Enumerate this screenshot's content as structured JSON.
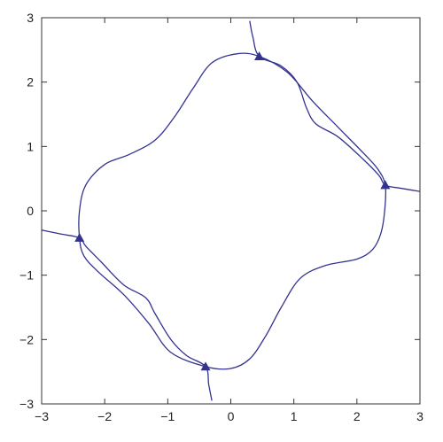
{
  "chart_data": {
    "type": "line",
    "title": "",
    "xlabel": "",
    "ylabel": "",
    "xlim": [
      -3,
      3
    ],
    "ylim": [
      -3,
      3
    ],
    "grid": false,
    "x_ticks": [
      -3,
      -2,
      -1,
      0,
      1,
      2,
      3
    ],
    "y_ticks": [
      -3,
      -2,
      -1,
      0,
      1,
      2,
      3
    ],
    "x_tick_labels": [
      "−3",
      "−2",
      "−1",
      "0",
      "1",
      "2",
      "3"
    ],
    "y_tick_labels": [
      "−3",
      "−2",
      "−1",
      "0",
      "1",
      "2",
      "3"
    ],
    "line_color": "#33338f",
    "series": [
      {
        "values_xy": [
          [
            2.45,
            0.4
          ],
          [
            2.44,
            0.0
          ],
          [
            2.38,
            -0.35
          ],
          [
            2.25,
            -0.6
          ],
          [
            2.0,
            -0.75
          ],
          [
            1.5,
            -0.85
          ],
          [
            1.1,
            -1.05
          ],
          [
            0.8,
            -1.5
          ],
          [
            0.55,
            -1.95
          ],
          [
            0.3,
            -2.3
          ],
          [
            0.0,
            -2.45
          ],
          [
            -0.4,
            -2.42
          ],
          [
            -0.95,
            -2.2
          ],
          [
            -1.3,
            -1.75
          ],
          [
            -1.7,
            -1.3
          ],
          [
            -2.1,
            -0.95
          ],
          [
            -2.33,
            -0.7
          ],
          [
            -2.4,
            -0.42
          ],
          [
            -2.4,
            0.0
          ],
          [
            -2.3,
            0.4
          ],
          [
            -2.0,
            0.72
          ],
          [
            -1.6,
            0.88
          ],
          [
            -1.2,
            1.1
          ],
          [
            -0.9,
            1.45
          ],
          [
            -0.6,
            1.9
          ],
          [
            -0.3,
            2.3
          ],
          [
            0.1,
            2.44
          ],
          [
            0.45,
            2.4
          ],
          [
            0.9,
            2.15
          ],
          [
            1.3,
            1.7
          ],
          [
            1.7,
            1.3
          ],
          [
            2.1,
            0.9
          ],
          [
            2.33,
            0.65
          ],
          [
            2.45,
            0.4
          ]
        ]
      },
      {
        "values_xy": [
          [
            0.3,
            2.95
          ],
          [
            0.35,
            2.7
          ],
          [
            0.45,
            2.4
          ],
          [
            0.8,
            2.25
          ],
          [
            1.05,
            2.0
          ],
          [
            1.2,
            1.6
          ],
          [
            1.35,
            1.35
          ],
          [
            1.7,
            1.15
          ],
          [
            2.1,
            0.8
          ],
          [
            2.35,
            0.55
          ],
          [
            2.45,
            0.4
          ],
          [
            2.7,
            0.35
          ],
          [
            3.0,
            0.3
          ]
        ]
      },
      {
        "values_xy": [
          [
            -3.0,
            -0.3
          ],
          [
            -2.7,
            -0.36
          ],
          [
            -2.4,
            -0.42
          ],
          [
            -2.3,
            -0.55
          ],
          [
            -2.05,
            -0.8
          ],
          [
            -1.7,
            -1.15
          ],
          [
            -1.35,
            -1.35
          ],
          [
            -1.2,
            -1.6
          ],
          [
            -0.95,
            -2.0
          ],
          [
            -0.7,
            -2.25
          ],
          [
            -0.4,
            -2.42
          ],
          [
            -0.35,
            -2.7
          ],
          [
            -0.3,
            -2.95
          ]
        ]
      }
    ],
    "markers": [
      [
        0.45,
        2.4
      ],
      [
        2.45,
        0.4
      ],
      [
        -2.4,
        -0.42
      ],
      [
        -0.4,
        -2.42
      ]
    ]
  }
}
